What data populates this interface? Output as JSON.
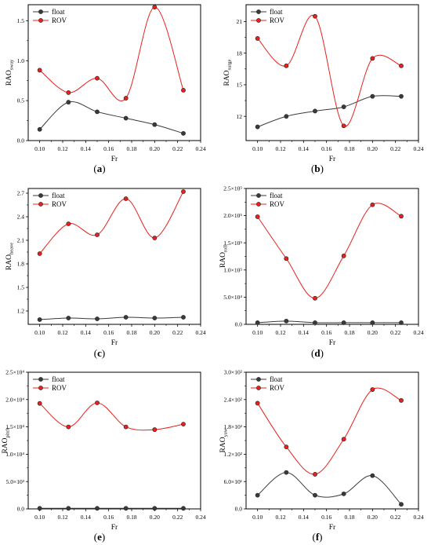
{
  "chart_data": [
    {
      "type": "line",
      "panel_label": "a",
      "xlabel": "Fr",
      "ylabel_main": "RAO",
      "ylabel_sub": "sway",
      "x": [
        0.1,
        0.125,
        0.15,
        0.175,
        0.2,
        0.225
      ],
      "xlim": [
        0.09,
        0.24
      ],
      "xticks": [
        0.1,
        0.12,
        0.14,
        0.16,
        0.18,
        0.2,
        0.22,
        0.24
      ],
      "xtick_labels": [
        "0.10",
        "0.12",
        "0.14",
        "0.16",
        "0.18",
        "0.20",
        "0.22",
        "0.24"
      ],
      "ylim": [
        0,
        1.7
      ],
      "yticks": [
        0,
        0.5,
        1.0,
        1.5
      ],
      "ytick_labels": [
        "0.0",
        "0.5",
        "1.0",
        "1.5"
      ],
      "legend_position": "top-left",
      "series": [
        {
          "name": "float",
          "color": "#3a3a3a",
          "values": [
            0.14,
            0.48,
            0.36,
            0.28,
            0.2,
            0.09
          ]
        },
        {
          "name": "ROV",
          "color": "#e8201e",
          "values": [
            0.88,
            0.6,
            0.78,
            0.53,
            1.67,
            0.63
          ]
        }
      ]
    },
    {
      "type": "line",
      "panel_label": "b",
      "xlabel": "Fr",
      "ylabel_main": "RAO",
      "ylabel_sub": "surge",
      "x": [
        0.1,
        0.125,
        0.15,
        0.175,
        0.2,
        0.225
      ],
      "xlim": [
        0.09,
        0.24
      ],
      "xticks": [
        0.1,
        0.12,
        0.14,
        0.16,
        0.18,
        0.2,
        0.22,
        0.24
      ],
      "xtick_labels": [
        "0.10",
        "0.12",
        "0.14",
        "0.16",
        "0.18",
        "0.20",
        "0.22",
        "0.24"
      ],
      "ylim": [
        9.7,
        22.6
      ],
      "yticks": [
        12,
        15,
        18,
        21
      ],
      "ytick_labels": [
        "12",
        "15",
        "18",
        "21"
      ],
      "legend_position": "top-left",
      "series": [
        {
          "name": "float",
          "color": "#3a3a3a",
          "values": [
            11.0,
            12.0,
            12.5,
            12.9,
            13.9,
            13.9
          ]
        },
        {
          "name": "ROV",
          "color": "#e8201e",
          "values": [
            19.4,
            16.8,
            21.5,
            11.1,
            17.5,
            16.8
          ]
        }
      ]
    },
    {
      "type": "line",
      "panel_label": "c",
      "xlabel": "Fr",
      "ylabel_main": "RAO",
      "ylabel_sub": "heave",
      "x": [
        0.1,
        0.125,
        0.15,
        0.175,
        0.2,
        0.225
      ],
      "xlim": [
        0.09,
        0.24
      ],
      "xticks": [
        0.1,
        0.12,
        0.14,
        0.16,
        0.18,
        0.2,
        0.22,
        0.24
      ],
      "xtick_labels": [
        "0.10",
        "0.12",
        "0.14",
        "0.16",
        "0.18",
        "0.20",
        "0.22",
        "0.24"
      ],
      "ylim": [
        1.03,
        2.76
      ],
      "yticks": [
        1.2,
        1.5,
        1.8,
        2.1,
        2.4,
        2.7
      ],
      "ytick_labels": [
        "1.2",
        "1.5",
        "1.8",
        "2.1",
        "2.4",
        "2.7"
      ],
      "legend_position": "top-left",
      "series": [
        {
          "name": "float",
          "color": "#3a3a3a",
          "values": [
            1.09,
            1.11,
            1.1,
            1.12,
            1.11,
            1.12
          ]
        },
        {
          "name": "ROV",
          "color": "#e8201e",
          "values": [
            1.93,
            2.31,
            2.17,
            2.63,
            2.13,
            2.72
          ]
        }
      ]
    },
    {
      "type": "line",
      "panel_label": "d",
      "xlabel": "Fr",
      "ylabel_main": "RAO",
      "ylabel_sub": "roll",
      "x": [
        0.1,
        0.125,
        0.15,
        0.175,
        0.2,
        0.225
      ],
      "xlim": [
        0.09,
        0.24
      ],
      "xticks": [
        0.1,
        0.12,
        0.14,
        0.16,
        0.18,
        0.2,
        0.22,
        0.24
      ],
      "xtick_labels": [
        "0.10",
        "0.12",
        "0.14",
        "0.16",
        "0.18",
        "0.20",
        "0.22",
        "0.24"
      ],
      "ylim": [
        0,
        250000
      ],
      "yticks": [
        0,
        50000,
        100000,
        150000,
        200000,
        250000
      ],
      "ytick_labels": [
        "0.0",
        "5.0×10⁴",
        "1.0×10⁵",
        "1.5×10⁵",
        "2.0×10⁵",
        "2.5×10⁵"
      ],
      "legend_position": "top-left",
      "series": [
        {
          "name": "float",
          "color": "#3a3a3a",
          "values": [
            3000,
            6000,
            3000,
            3000,
            3000,
            3000
          ]
        },
        {
          "name": "ROV",
          "color": "#e8201e",
          "values": [
            198000,
            121000,
            48000,
            126000,
            220000,
            199000
          ]
        }
      ]
    },
    {
      "type": "line",
      "panel_label": "e",
      "xlabel": "Fr",
      "ylabel_main": "RAO",
      "ylabel_sub": "pitch",
      "x": [
        0.1,
        0.125,
        0.15,
        0.175,
        0.2,
        0.225
      ],
      "xlim": [
        0.09,
        0.24
      ],
      "xticks": [
        0.1,
        0.12,
        0.14,
        0.16,
        0.18,
        0.2,
        0.22,
        0.24
      ],
      "xtick_labels": [
        "0.10",
        "0.12",
        "0.14",
        "0.16",
        "0.18",
        "0.20",
        "0.22",
        "0.24"
      ],
      "ylim": [
        0,
        25000
      ],
      "yticks": [
        0,
        5000,
        10000,
        15000,
        20000,
        25000
      ],
      "ytick_labels": [
        "0.0",
        "5.0×10³",
        "1.0×10⁴",
        "1.5×10⁴",
        "2.0×10⁴",
        "2.5×10⁴"
      ],
      "legend_position": "top-left",
      "series": [
        {
          "name": "float",
          "color": "#3a3a3a",
          "values": [
            100,
            100,
            100,
            100,
            100,
            100
          ]
        },
        {
          "name": "ROV",
          "color": "#e8201e",
          "values": [
            19300,
            15000,
            19400,
            15000,
            14500,
            15500
          ]
        }
      ]
    },
    {
      "type": "line",
      "panel_label": "f",
      "xlabel": "Fr",
      "ylabel_main": "RAO",
      "ylabel_sub": "yaw",
      "x": [
        0.1,
        0.125,
        0.15,
        0.175,
        0.2,
        0.225
      ],
      "xlim": [
        0.09,
        0.24
      ],
      "xticks": [
        0.1,
        0.12,
        0.14,
        0.16,
        0.18,
        0.2,
        0.22,
        0.24
      ],
      "xtick_labels": [
        "0.10",
        "0.12",
        "0.14",
        "0.16",
        "0.18",
        "0.20",
        "0.22",
        "0.24"
      ],
      "ylim": [
        0,
        300
      ],
      "yticks": [
        0,
        60,
        120,
        180,
        240,
        300
      ],
      "ytick_labels": [
        "0.0",
        "6.0×10¹",
        "1.2×10²",
        "1.8×10²",
        "2.4×10²",
        "3.0×10²"
      ],
      "legend_position": "top-left",
      "series": [
        {
          "name": "float",
          "color": "#3a3a3a",
          "values": [
            30,
            80,
            30,
            33,
            73,
            10
          ]
        },
        {
          "name": "ROV",
          "color": "#e8201e",
          "values": [
            232,
            136,
            76,
            153,
            262,
            238
          ]
        }
      ]
    }
  ]
}
